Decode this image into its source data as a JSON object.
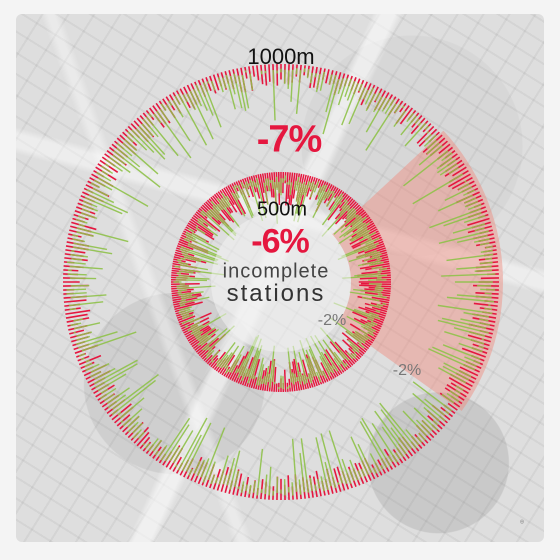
{
  "rings": {
    "outer": {
      "label": "1000m",
      "change": "-7%"
    },
    "inner": {
      "label": "500m",
      "change": "-6%"
    }
  },
  "caption": {
    "line1": "incomplete",
    "line2": "stations"
  },
  "sector": {
    "inner_change": "-2%",
    "outer_change": "-2%"
  },
  "footer": {
    "mark": "⊕"
  },
  "colors": {
    "decline": "#e5173f",
    "growth": "#8fc24a",
    "sector": "#f08a7c",
    "text": "#111111"
  }
}
